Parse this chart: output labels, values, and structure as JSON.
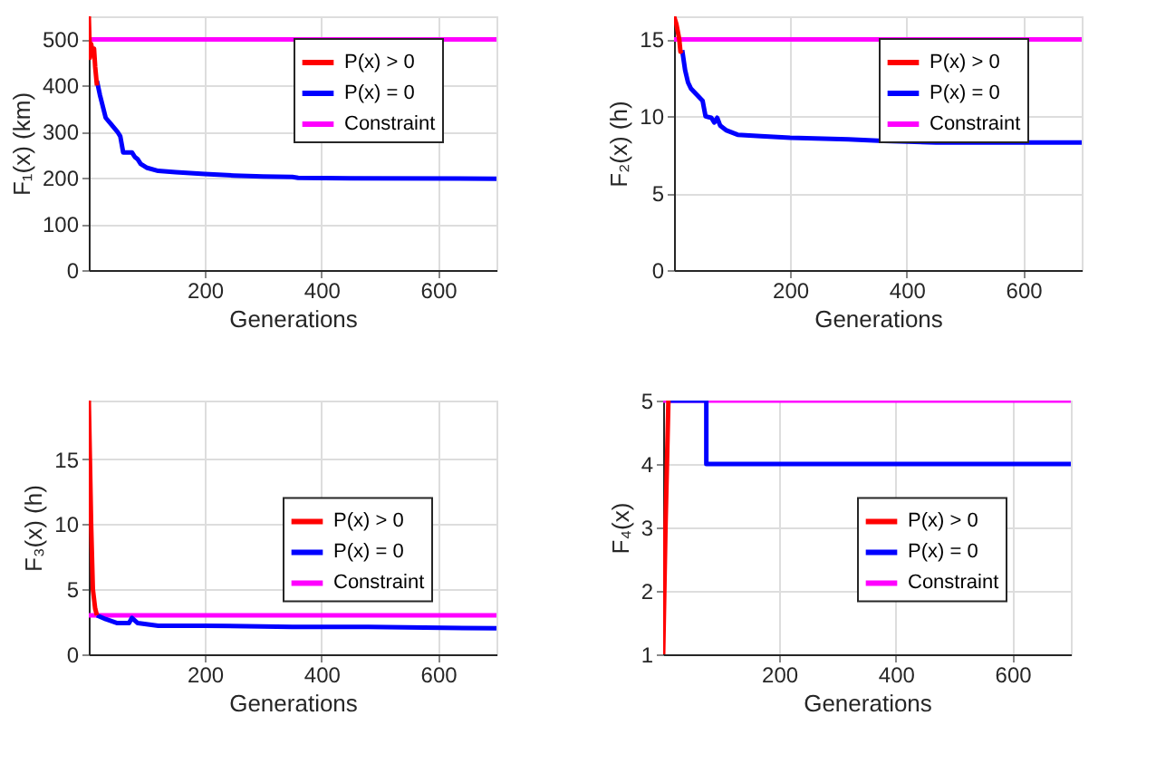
{
  "chart_data": [
    {
      "type": "line",
      "xlabel": "Generations",
      "ylabel": "F₁(x) (km)",
      "xlim": [
        1,
        700
      ],
      "xticks": [
        200,
        400,
        600
      ],
      "ylim": [
        0,
        550
      ],
      "yticks": [
        0,
        100,
        200,
        300,
        400,
        500
      ],
      "grid": true,
      "legend": "top right",
      "line_style": "solid",
      "series": [
        {
          "name": "P(x) > 0",
          "color": "#ff0000",
          "x": [
            1,
            3,
            5,
            8,
            10,
            12,
            15
          ],
          "values": [
            550,
            460,
            490,
            470,
            480,
            440,
            400
          ]
        },
        {
          "name": "P(x) = 0",
          "color": "#0000ff",
          "x": [
            15,
            20,
            30,
            40,
            50,
            55,
            60,
            75,
            80,
            85,
            90,
            100,
            120,
            150,
            200,
            250,
            300,
            350,
            360,
            450,
            700
          ],
          "values": [
            410,
            380,
            330,
            315,
            300,
            290,
            255,
            255,
            245,
            240,
            230,
            222,
            215,
            212,
            208,
            205,
            203,
            202,
            200,
            199,
            198
          ]
        },
        {
          "name": "Constraint",
          "color": "#ff00ff",
          "x": [
            1,
            700
          ],
          "values": [
            500,
            500
          ]
        }
      ]
    },
    {
      "type": "line",
      "xlabel": "Generations",
      "ylabel": "F₂(x) (h)",
      "xlim": [
        1,
        700
      ],
      "xticks": [
        200,
        400,
        600
      ],
      "ylim": [
        0,
        16.5
      ],
      "yticks": [
        0,
        5,
        10,
        15
      ],
      "grid": true,
      "legend": "top right",
      "line_style": "solid",
      "series": [
        {
          "name": "P(x) > 0",
          "color": "#ff0000",
          "x": [
            1,
            5,
            10,
            12,
            15
          ],
          "values": [
            16.5,
            16,
            15,
            14.2,
            14.3
          ]
        },
        {
          "name": "P(x) = 0",
          "color": "#0000ff",
          "x": [
            15,
            20,
            25,
            30,
            40,
            50,
            55,
            65,
            70,
            75,
            80,
            90,
            110,
            150,
            200,
            300,
            360,
            450,
            700
          ],
          "values": [
            14.3,
            13,
            12.2,
            11.8,
            11.4,
            11,
            10,
            9.9,
            9.6,
            9.9,
            9.4,
            9.1,
            8.8,
            8.7,
            8.6,
            8.5,
            8.4,
            8.3,
            8.3
          ]
        },
        {
          "name": "Constraint",
          "color": "#ff00ff",
          "x": [
            1,
            700
          ],
          "values": [
            15,
            15
          ]
        }
      ]
    },
    {
      "type": "line",
      "xlabel": "Generations",
      "ylabel": "F₃(x) (h)",
      "xlim": [
        1,
        700
      ],
      "xticks": [
        200,
        400,
        600
      ],
      "ylim": [
        0,
        19.5
      ],
      "yticks": [
        0,
        5,
        10,
        15
      ],
      "grid": true,
      "legend": "right",
      "line_style": "solid",
      "series": [
        {
          "name": "P(x) > 0",
          "color": "#ff0000",
          "x": [
            1,
            5,
            8,
            12,
            15
          ],
          "values": [
            19.5,
            10,
            5,
            3.5,
            3.0
          ]
        },
        {
          "name": "P(x) = 0",
          "color": "#0000ff",
          "x": [
            15,
            30,
            50,
            70,
            75,
            85,
            120,
            200,
            350,
            480,
            700
          ],
          "values": [
            3.0,
            2.7,
            2.4,
            2.4,
            2.8,
            2.4,
            2.2,
            2.2,
            2.1,
            2.1,
            2.0
          ]
        },
        {
          "name": "Constraint",
          "color": "#ff00ff",
          "x": [
            1,
            700
          ],
          "values": [
            3,
            3
          ]
        }
      ]
    },
    {
      "type": "line",
      "xlabel": "Generations",
      "ylabel": "F₄(x)",
      "xlim": [
        1,
        700
      ],
      "xticks": [
        200,
        400,
        600
      ],
      "ylim": [
        1,
        5
      ],
      "yticks": [
        1,
        2,
        3,
        4,
        5
      ],
      "grid": true,
      "legend": "right",
      "line_style": "solid",
      "series": [
        {
          "name": "P(x) > 0",
          "color": "#ff0000",
          "x": [
            1,
            5,
            10
          ],
          "values": [
            1,
            3,
            5
          ]
        },
        {
          "name": "P(x) = 0",
          "color": "#0000ff",
          "x": [
            10,
            75,
            75,
            700
          ],
          "values": [
            5,
            5,
            4,
            4
          ]
        },
        {
          "name": "Constraint",
          "color": "#ff00ff",
          "x": [
            1,
            700
          ],
          "values": [
            5,
            5
          ]
        }
      ]
    }
  ]
}
